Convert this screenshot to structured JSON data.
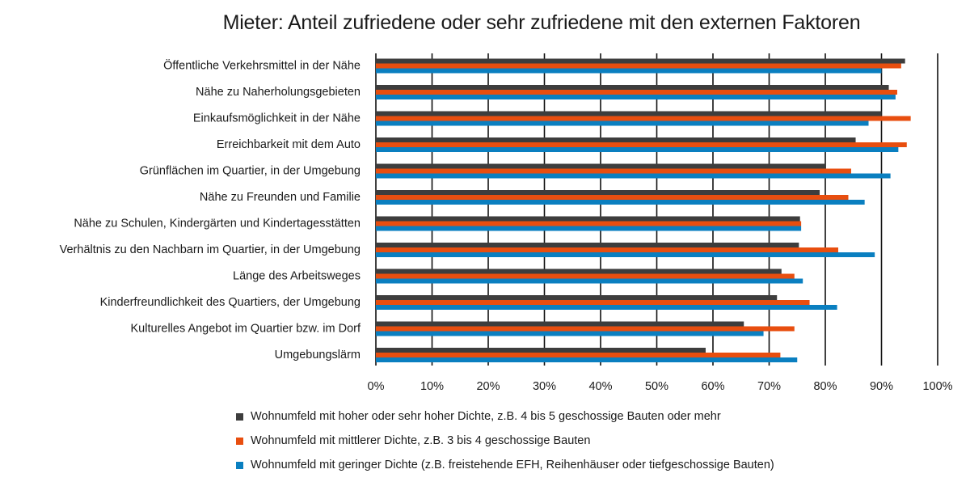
{
  "chart_data": {
    "type": "bar",
    "orientation": "horizontal",
    "title": "Mieter: Anteil zufriedene oder sehr zufriedene mit den externen Faktoren",
    "categories": [
      "Öffentliche Verkehrsmittel in der Nähe",
      "Nähe zu Naherholungsgebieten",
      "Einkaufsmöglichkeit in der Nähe",
      "Erreichbarkeit mit dem Auto",
      "Grünflächen im Quartier, in der Umgebung",
      "Nähe zu Freunden und Familie",
      "Nähe zu Schulen, Kindergärten und Kindertagesstätten",
      "Verhältnis zu den Nachbarn im Quartier, in der Umgebung",
      "Länge des Arbeitsweges",
      "Kinderfreundlichkeit des Quartiers, der Umgebung",
      "Kulturelles Angebot im Quartier bzw. im Dorf",
      "Umgebungslärm"
    ],
    "series": [
      {
        "name": "Wohnumfeld mit hoher oder sehr hoher Dichte, z.B. 4 bis 5 geschossige Bauten oder mehr",
        "color": "#3d3d3d",
        "values": [
          94.2,
          91.3,
          90.0,
          85.4,
          80.0,
          79.0,
          75.5,
          75.3,
          72.2,
          71.4,
          65.5,
          58.7
        ]
      },
      {
        "name": "Wohnumfeld mit mittlerer Dichte, z.B. 3 bis 4 geschossige Bauten",
        "color": "#e84e0f",
        "values": [
          93.5,
          92.8,
          95.2,
          94.5,
          84.6,
          84.1,
          75.7,
          82.3,
          74.5,
          77.2,
          74.5,
          72.0
        ]
      },
      {
        "name": "Wohnumfeld mit geringer Dichte (z.B. freistehende EFH, Reihenhäuser oder tiefgeschossige Bauten)",
        "color": "#0a7fc0",
        "values": [
          90.0,
          92.5,
          87.7,
          93.0,
          91.6,
          87.0,
          75.7,
          88.8,
          76.0,
          82.1,
          69.0,
          75.0
        ]
      }
    ],
    "xlim": [
      0,
      100
    ],
    "x_ticks": [
      "0%",
      "10%",
      "20%",
      "30%",
      "40%",
      "50%",
      "60%",
      "70%",
      "80%",
      "90%",
      "100%"
    ],
    "grid": "vertical",
    "legend_position": "bottom"
  }
}
